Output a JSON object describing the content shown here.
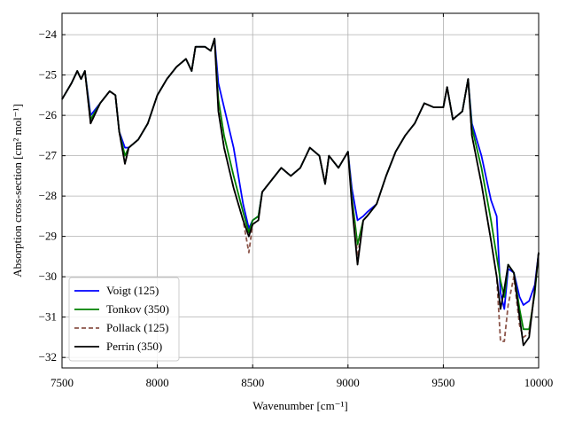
{
  "chart_data": {
    "type": "line",
    "xlabel": "Wavenumber [cm⁻¹]",
    "ylabel": "Absorption cross-section [cm² mol⁻¹]",
    "x": [
      7500,
      7550,
      7580,
      7600,
      7620,
      7650,
      7700,
      7750,
      7780,
      7800,
      7830,
      7850,
      7900,
      7950,
      8000,
      8050,
      8100,
      8150,
      8180,
      8200,
      8250,
      8280,
      8300,
      8320,
      8350,
      8400,
      8450,
      8480,
      8500,
      8530,
      8550,
      8600,
      8650,
      8700,
      8750,
      8800,
      8850,
      8880,
      8900,
      8950,
      9000,
      9020,
      9050,
      9080,
      9100,
      9150,
      9200,
      9250,
      9300,
      9350,
      9400,
      9450,
      9500,
      9520,
      9550,
      9600,
      9630,
      9650,
      9700,
      9750,
      9780,
      9800,
      9820,
      9840,
      9870,
      9900,
      9920,
      9950,
      9980,
      10000
    ],
    "series": [
      {
        "name": "Voigt (125)",
        "color": "#0000ff",
        "dash": false,
        "values": [
          -25.6,
          -25.2,
          -24.9,
          -25.1,
          -24.9,
          -26.0,
          -25.7,
          -25.4,
          -25.5,
          -26.4,
          -26.8,
          -26.8,
          -26.6,
          -26.2,
          -25.5,
          -25.1,
          -24.8,
          -24.6,
          -24.9,
          -24.3,
          -24.3,
          -24.4,
          -24.1,
          -25.2,
          -25.8,
          -26.8,
          -28.2,
          -28.8,
          -28.6,
          -28.5,
          -27.9,
          -27.6,
          -27.3,
          -27.5,
          -27.3,
          -26.8,
          -27.0,
          -27.7,
          -27.0,
          -27.3,
          -26.9,
          -27.8,
          -28.6,
          -28.5,
          -28.4,
          -28.2,
          -27.5,
          -26.9,
          -26.5,
          -26.2,
          -25.7,
          -25.8,
          -25.8,
          -25.3,
          -26.1,
          -25.9,
          -25.1,
          -26.2,
          -27.0,
          -28.1,
          -28.5,
          -30.4,
          -30.8,
          -29.8,
          -29.9,
          -30.5,
          -30.7,
          -30.6,
          -30.2,
          -29.4
        ]
      },
      {
        "name": "Tonkov (350)",
        "color": "#008000",
        "dash": false,
        "values": [
          -25.6,
          -25.2,
          -24.9,
          -25.1,
          -24.9,
          -26.1,
          -25.7,
          -25.4,
          -25.5,
          -26.4,
          -27.0,
          -26.8,
          -26.6,
          -26.2,
          -25.5,
          -25.1,
          -24.8,
          -24.6,
          -24.9,
          -24.3,
          -24.3,
          -24.4,
          -24.1,
          -25.6,
          -26.5,
          -27.5,
          -28.4,
          -28.9,
          -28.6,
          -28.5,
          -27.9,
          -27.6,
          -27.3,
          -27.5,
          -27.3,
          -26.8,
          -27.0,
          -27.7,
          -27.0,
          -27.3,
          -26.9,
          -28.0,
          -29.2,
          -28.6,
          -28.5,
          -28.2,
          -27.5,
          -26.9,
          -26.5,
          -26.2,
          -25.7,
          -25.8,
          -25.8,
          -25.3,
          -26.1,
          -25.9,
          -25.1,
          -26.3,
          -27.3,
          -28.6,
          -29.5,
          -30.1,
          -30.5,
          -29.7,
          -29.9,
          -30.8,
          -31.3,
          -31.3,
          -30.4,
          -29.4
        ]
      },
      {
        "name": "Pollack (125)",
        "color": "#8c564b",
        "dash": true,
        "values": [
          -25.6,
          -25.2,
          -24.9,
          -25.1,
          -24.9,
          -26.2,
          -25.7,
          -25.4,
          -25.5,
          -26.4,
          -27.2,
          -26.8,
          -26.6,
          -26.2,
          -25.5,
          -25.1,
          -24.8,
          -24.6,
          -24.9,
          -24.3,
          -24.3,
          -24.4,
          -24.1,
          -25.8,
          -26.8,
          -27.8,
          -28.6,
          -29.4,
          -28.7,
          -28.6,
          -27.9,
          -27.6,
          -27.3,
          -27.5,
          -27.3,
          -26.8,
          -27.0,
          -27.7,
          -27.0,
          -27.3,
          -26.9,
          -28.1,
          -29.5,
          -28.6,
          -28.5,
          -28.2,
          -27.5,
          -26.9,
          -26.5,
          -26.2,
          -25.7,
          -25.8,
          -25.8,
          -25.3,
          -26.1,
          -25.9,
          -25.1,
          -26.5,
          -27.7,
          -29.1,
          -30.0,
          -31.6,
          -31.6,
          -30.7,
          -30.0,
          -31.2,
          -31.5,
          -31.4,
          -30.3,
          -29.4
        ]
      },
      {
        "name": "Perrin (350)",
        "color": "#000000",
        "dash": false,
        "values": [
          -25.6,
          -25.2,
          -24.9,
          -25.1,
          -24.9,
          -26.2,
          -25.7,
          -25.4,
          -25.5,
          -26.4,
          -27.2,
          -26.8,
          -26.6,
          -26.2,
          -25.5,
          -25.1,
          -24.8,
          -24.6,
          -24.9,
          -24.3,
          -24.3,
          -24.4,
          -24.1,
          -25.9,
          -26.8,
          -27.8,
          -28.6,
          -29.0,
          -28.7,
          -28.6,
          -27.9,
          -27.6,
          -27.3,
          -27.5,
          -27.3,
          -26.8,
          -27.0,
          -27.7,
          -27.0,
          -27.3,
          -26.9,
          -28.2,
          -29.7,
          -28.6,
          -28.5,
          -28.2,
          -27.5,
          -26.9,
          -26.5,
          -26.2,
          -25.7,
          -25.8,
          -25.8,
          -25.3,
          -26.1,
          -25.9,
          -25.1,
          -26.5,
          -27.7,
          -29.1,
          -30.0,
          -30.8,
          -30.3,
          -29.7,
          -29.9,
          -31.0,
          -31.7,
          -31.5,
          -30.3,
          -29.4
        ]
      }
    ],
    "xlim": [
      7500,
      10000
    ],
    "xticks": [
      7500,
      8000,
      8500,
      9000,
      9500,
      10000
    ],
    "ylim": [
      -32.26,
      -23.47
    ],
    "yticks": [
      {
        "value": -32,
        "label": "−32"
      },
      {
        "value": -31,
        "label": "−31"
      },
      {
        "value": -30,
        "label": "−30"
      },
      {
        "value": -29,
        "label": "−29"
      },
      {
        "value": -28,
        "label": "−28"
      },
      {
        "value": -27,
        "label": "−27"
      },
      {
        "value": -26,
        "label": "−26"
      },
      {
        "value": -25,
        "label": "−25"
      },
      {
        "value": -24,
        "label": "−24"
      }
    ],
    "grid": true,
    "legend": "lower left"
  }
}
